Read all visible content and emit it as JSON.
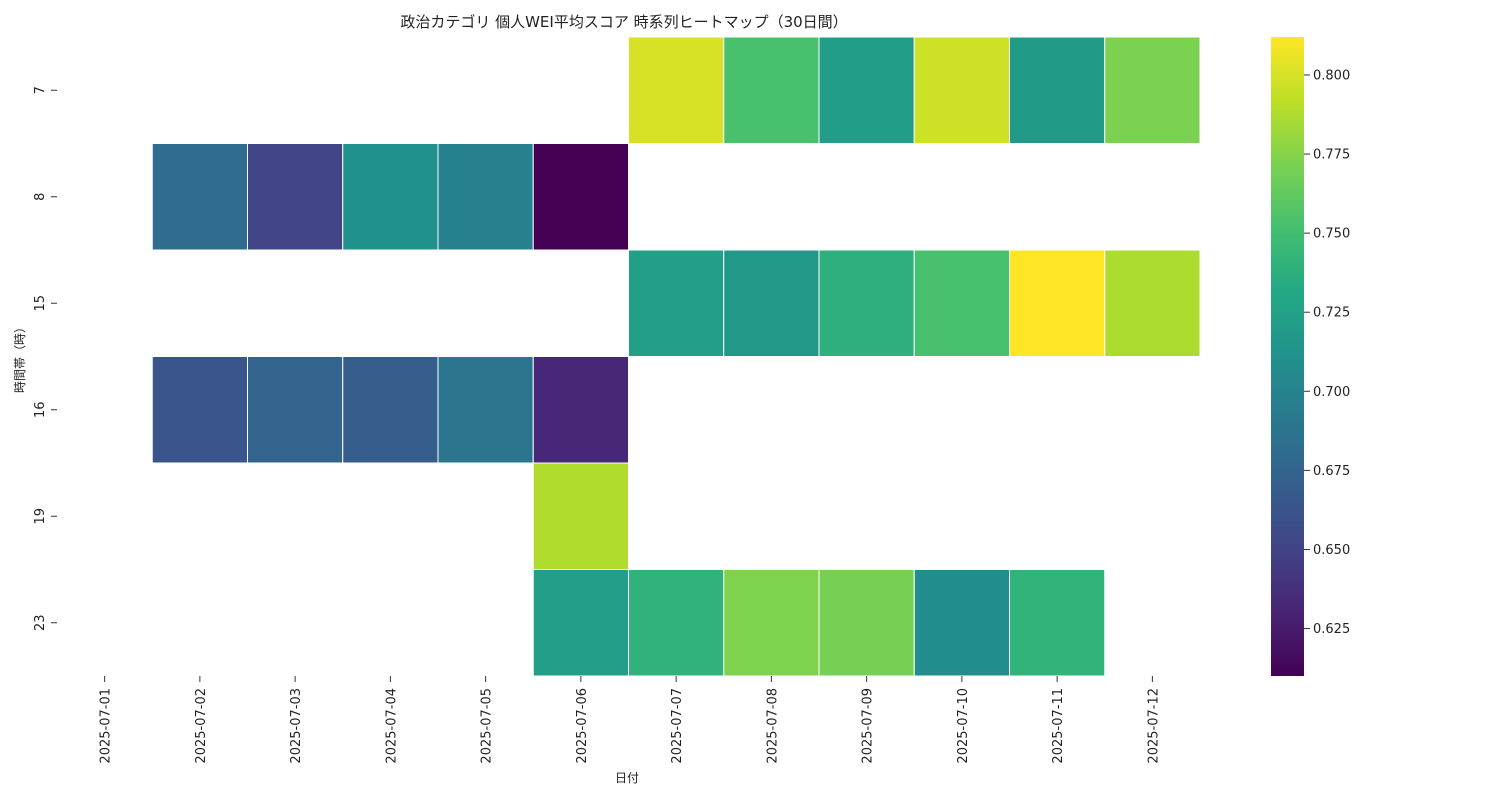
{
  "chart_data": {
    "type": "heatmap",
    "title": "政治カテゴリ 個人WEI平均スコア 時系列ヒートマップ（30日間）",
    "xlabel": "日付",
    "ylabel": "時間帯（時）",
    "x": [
      "2025-07-01",
      "2025-07-02",
      "2025-07-03",
      "2025-07-04",
      "2025-07-05",
      "2025-07-06",
      "2025-07-07",
      "2025-07-08",
      "2025-07-09",
      "2025-07-10",
      "2025-07-11",
      "2025-07-12"
    ],
    "y": [
      "7",
      "8",
      "15",
      "16",
      "19",
      "23"
    ],
    "values": [
      [
        null,
        null,
        null,
        null,
        null,
        null,
        0.8,
        0.753,
        0.722,
        0.797,
        0.72,
        0.772
      ],
      [
        null,
        0.681,
        0.651,
        0.711,
        0.697,
        0.61,
        null,
        null,
        null,
        null,
        null,
        null
      ],
      [
        null,
        null,
        null,
        null,
        null,
        null,
        0.723,
        0.717,
        0.738,
        0.753,
        0.812,
        0.787
      ],
      [
        null,
        0.663,
        0.675,
        0.67,
        0.689,
        0.632,
        null,
        null,
        null,
        null,
        null,
        null
      ],
      [
        null,
        null,
        null,
        null,
        null,
        0.788,
        null,
        null,
        null,
        null,
        null,
        null
      ],
      [
        null,
        null,
        null,
        null,
        null,
        0.723,
        0.74,
        0.773,
        0.77,
        0.708,
        0.741,
        null
      ]
    ],
    "colormap": "viridis",
    "colorbar": {
      "range": [
        0.61,
        0.812
      ],
      "ticks": [
        "0.625",
        "0.650",
        "0.675",
        "0.700",
        "0.725",
        "0.750",
        "0.775",
        "0.800"
      ]
    }
  }
}
